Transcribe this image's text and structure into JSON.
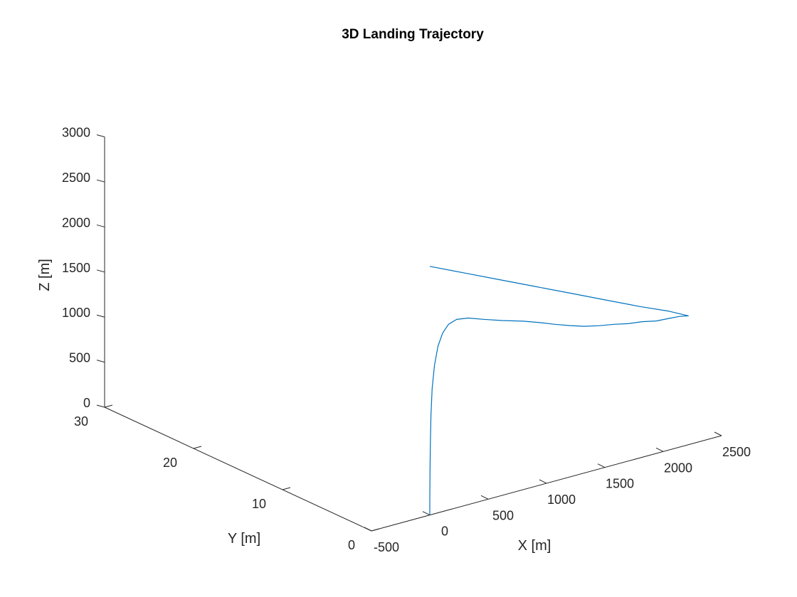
{
  "chart_data": {
    "type": "line",
    "title": "3D Landing Trajectory",
    "xlabel": "X [m]",
    "ylabel": "Y [m]",
    "zlabel": "Z [m]",
    "xlim": [
      -500,
      2500
    ],
    "ylim": [
      0,
      30
    ],
    "zlim": [
      0,
      3000
    ],
    "xticks": [
      -500,
      0,
      500,
      1000,
      1500,
      2000,
      2500
    ],
    "xtick_labels": [
      "-500",
      "0",
      "500",
      "1000",
      "1500",
      "2000",
      "2500"
    ],
    "yticks": [
      0,
      10,
      20,
      30
    ],
    "ytick_labels": [
      "0",
      "10",
      "20",
      "30"
    ],
    "zticks": [
      0,
      500,
      1000,
      1500,
      2000,
      2500,
      3000
    ],
    "ztick_labels": [
      "0",
      "500",
      "1000",
      "1500",
      "2000",
      "2500",
      "3000"
    ],
    "grid": false,
    "series_color": "#0072BD",
    "series": [
      {
        "x": [
          0,
          0,
          2,
          5,
          10,
          20,
          40,
          70,
          110,
          160,
          230,
          330,
          460,
          620,
          800,
          950,
          1070,
          1200,
          1320,
          1450,
          1580,
          1700,
          1820,
          1940,
          2050,
          2140,
          2215,
          2185,
          2050,
          1800,
          1500,
          1200,
          900,
          600,
          300,
          0
        ],
        "y": [
          0,
          0,
          0,
          0,
          0,
          0,
          0,
          0,
          0,
          0,
          0,
          0,
          0,
          0,
          0,
          0,
          0,
          0,
          0,
          0,
          0,
          0,
          0,
          0,
          0,
          0,
          0,
          0,
          0,
          0,
          0,
          0,
          0,
          0,
          0,
          0
        ],
        "z": [
          0,
          200,
          500,
          800,
          1100,
          1400,
          1650,
          1850,
          1980,
          2060,
          2090,
          2070,
          2010,
          1940,
          1870,
          1800,
          1740,
          1680,
          1630,
          1590,
          1560,
          1525,
          1505,
          1470,
          1460,
          1450,
          1430,
          1450,
          1540,
          1680,
          1860,
          2040,
          2220,
          2400,
          2580,
          2760
        ]
      }
    ]
  }
}
